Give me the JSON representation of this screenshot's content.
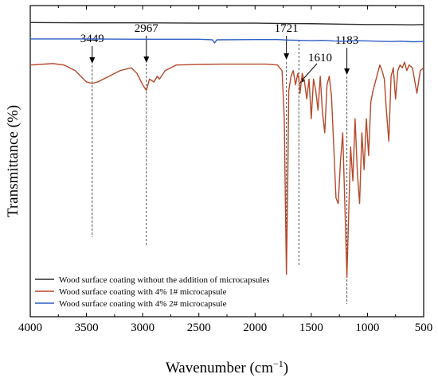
{
  "chart_data": {
    "type": "line",
    "title": "",
    "xlabel": "Wavenumber (cm",
    "xlabel_sup": "−1",
    "xlabel_close": ")",
    "ylabel": "Transmittance (%)",
    "xlim": [
      4000,
      500
    ],
    "x_reversed": true,
    "x_ticks": [
      4000,
      3500,
      3000,
      2500,
      2000,
      1500,
      1000,
      500
    ],
    "y_ticks_shown": false,
    "grid": false,
    "legend_position": "bottom-left",
    "annotations": [
      {
        "label": "3449",
        "x": 3449
      },
      {
        "label": "2967",
        "x": 2967
      },
      {
        "label": "1721",
        "x": 1721
      },
      {
        "label": "1610",
        "x": 1610
      },
      {
        "label": "1183",
        "x": 1183
      }
    ],
    "series": [
      {
        "name": "Wood surface coating without the addition of microcapsules",
        "color": "#2b2b2b",
        "x": [
          4000,
          3500,
          3000,
          2500,
          2000,
          1800,
          1500,
          1200,
          1000,
          800,
          600,
          500
        ],
        "y": [
          94.0,
          93.9,
          93.9,
          93.8,
          93.8,
          93.7,
          93.6,
          93.4,
          93.3,
          93.3,
          93.2,
          93.3
        ]
      },
      {
        "name": "Wood surface coating with 4% 1# microcapsule",
        "color": "#b5492a",
        "x": [
          4000,
          3800,
          3700,
          3600,
          3500,
          3449,
          3400,
          3300,
          3200,
          3100,
          3050,
          3000,
          2967,
          2940,
          2900,
          2870,
          2850,
          2800,
          2700,
          2500,
          2300,
          2100,
          1900,
          1800,
          1760,
          1740,
          1730,
          1721,
          1710,
          1700,
          1680,
          1660,
          1640,
          1620,
          1610,
          1600,
          1580,
          1560,
          1540,
          1520,
          1500,
          1480,
          1460,
          1440,
          1420,
          1400,
          1380,
          1360,
          1340,
          1320,
          1300,
          1280,
          1260,
          1240,
          1220,
          1200,
          1183,
          1170,
          1150,
          1130,
          1110,
          1090,
          1070,
          1050,
          1030,
          1010,
          990,
          970,
          950,
          930,
          910,
          890,
          870,
          850,
          830,
          810,
          790,
          770,
          750,
          730,
          710,
          690,
          670,
          650,
          630,
          600,
          560,
          530,
          500
        ],
        "y": [
          79.0,
          79.5,
          79.0,
          77.0,
          73.0,
          72.5,
          73.0,
          75.0,
          77.0,
          78.0,
          76.0,
          72.0,
          70.0,
          74.0,
          73.0,
          75.0,
          74.0,
          77.0,
          79.0,
          79.2,
          79.3,
          79.3,
          79.3,
          79.0,
          77.0,
          60.0,
          30.0,
          5.0,
          35.0,
          70.0,
          75.0,
          77.0,
          72.0,
          76.0,
          74.0,
          69.0,
          76.0,
          73.0,
          67.0,
          74.0,
          60.0,
          74.0,
          70.0,
          63.0,
          75.0,
          62.0,
          55.0,
          72.0,
          75.0,
          68.0,
          50.0,
          32.0,
          30.0,
          45.0,
          55.0,
          28.0,
          4.0,
          22.0,
          50.0,
          38.0,
          60.0,
          41.0,
          30.0,
          55.0,
          42.0,
          60.0,
          47.0,
          66.0,
          70.0,
          73.0,
          76.0,
          79.0,
          77.0,
          74.0,
          62.0,
          52.0,
          75.0,
          78.0,
          67.0,
          77.0,
          79.0,
          78.0,
          80.0,
          77.0,
          79.0,
          78.0,
          69.0,
          77.0,
          78.0
        ]
      },
      {
        "name": "Wood surface coating with 4% 2# microcapsule",
        "color": "#2f5fc4",
        "x": [
          4000,
          3500,
          3000,
          2500,
          2380,
          2360,
          2340,
          2000,
          1800,
          1700,
          1600,
          1500,
          1400,
          1300,
          1200,
          1100,
          1000,
          900,
          800,
          700,
          600,
          500
        ],
        "y": [
          88.2,
          88.2,
          88.1,
          88.1,
          87.9,
          86.8,
          87.9,
          88.0,
          88.0,
          87.8,
          87.7,
          87.6,
          87.7,
          87.5,
          87.4,
          87.6,
          87.5,
          87.4,
          87.3,
          87.4,
          87.2,
          87.3
        ]
      }
    ]
  }
}
